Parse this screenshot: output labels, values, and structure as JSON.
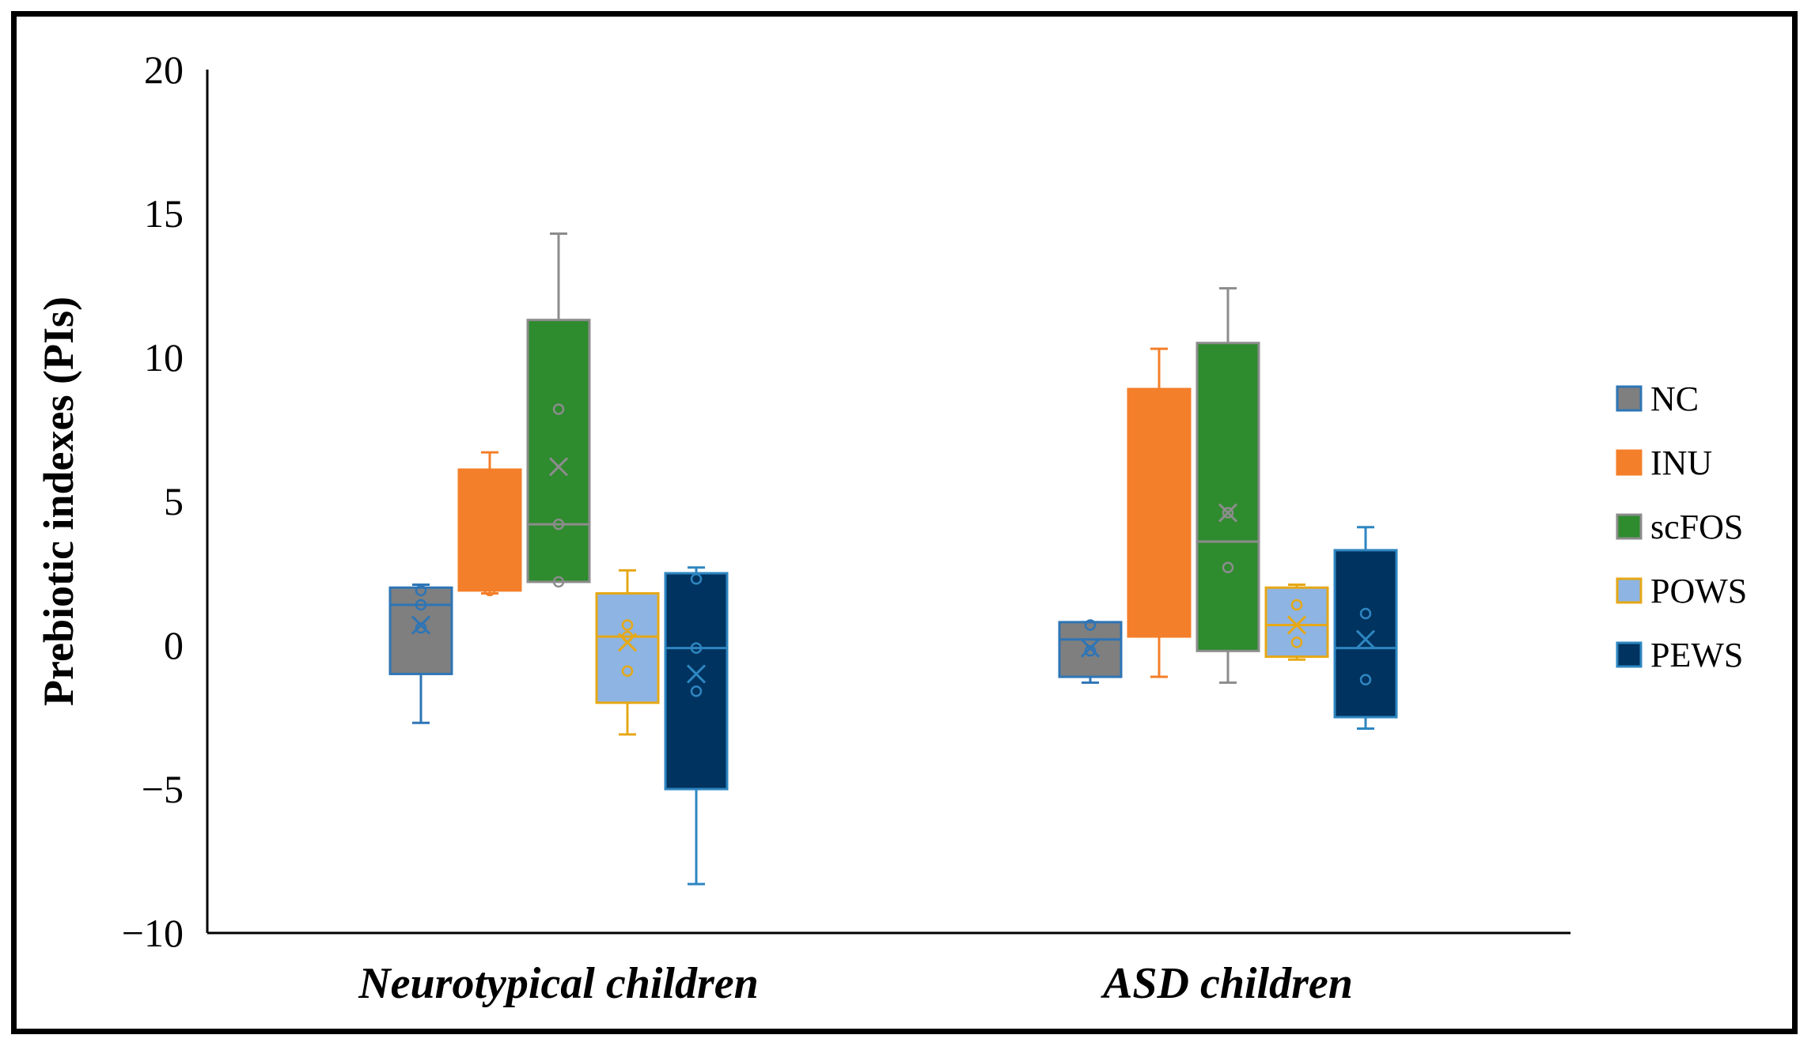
{
  "chart_data": {
    "type": "box",
    "title": "",
    "xlabel": "",
    "ylabel": "Prebiotic indexes (PIs)",
    "ylim": [
      -10,
      20
    ],
    "yticks": [
      -10,
      -5,
      0,
      5,
      10,
      15,
      20
    ],
    "ytick_labels": [
      "−10",
      "−5",
      "0",
      "5",
      "10",
      "15",
      "20"
    ],
    "grid": false,
    "legend_position": "right",
    "categories": [
      "Neurotypical children",
      "ASD children"
    ],
    "series": [
      {
        "name": "NC",
        "fill": "#7f7f7f",
        "stroke": "#2e75b6",
        "boxes": [
          {
            "min": -2.7,
            "q1": -1.0,
            "median": 1.4,
            "q3": 2.0,
            "max": 2.1,
            "mean": 0.7,
            "points": [
              1.9,
              1.4,
              0.6
            ]
          },
          {
            "min": -1.3,
            "q1": -1.1,
            "median": 0.2,
            "q3": 0.8,
            "max": 0.8,
            "mean": -0.1,
            "points": [
              0.7,
              -0.2
            ]
          }
        ]
      },
      {
        "name": "INU",
        "fill": "#f47f2a",
        "stroke": "#f47f2a",
        "boxes": [
          {
            "min": 1.8,
            "q1": 1.9,
            "median": 2.2,
            "q3": 6.1,
            "max": 6.7,
            "mean": 3.6,
            "points": [
              5.4,
              2.2,
              1.9
            ]
          },
          {
            "min": -1.1,
            "q1": 0.3,
            "median": 4.7,
            "q3": 8.9,
            "max": 10.3,
            "mean": 4.7,
            "points": [
              4.9,
              4.4
            ]
          }
        ]
      },
      {
        "name": "scFOS",
        "fill": "#2e8b2e",
        "stroke": "#8c8c8c",
        "boxes": [
          {
            "min": 2.2,
            "q1": 2.2,
            "median": 4.2,
            "q3": 11.3,
            "max": 14.3,
            "mean": 6.2,
            "points": [
              8.2,
              4.2,
              2.2
            ]
          },
          {
            "min": -1.3,
            "q1": -0.2,
            "median": 3.6,
            "q3": 10.5,
            "max": 12.4,
            "mean": 4.6,
            "points": [
              4.6,
              2.7
            ]
          }
        ]
      },
      {
        "name": "POWS",
        "fill": "#8db4e2",
        "stroke": "#e6a817",
        "boxes": [
          {
            "min": -3.1,
            "q1": -2.0,
            "median": 0.3,
            "q3": 1.8,
            "max": 2.6,
            "mean": 0.1,
            "points": [
              0.7,
              0.3,
              -0.9
            ]
          },
          {
            "min": -0.5,
            "q1": -0.4,
            "median": 0.7,
            "q3": 2.0,
            "max": 2.1,
            "mean": 0.7,
            "points": [
              1.4,
              0.1
            ]
          }
        ]
      },
      {
        "name": "PEWS",
        "fill": "#00335f",
        "stroke": "#2e86c1",
        "boxes": [
          {
            "min": -8.3,
            "q1": -5.0,
            "median": -0.1,
            "q3": 2.5,
            "max": 2.7,
            "mean": -1.0,
            "points": [
              2.3,
              -0.1,
              -1.6
            ]
          },
          {
            "min": -2.9,
            "q1": -2.5,
            "median": -0.1,
            "q3": 3.3,
            "max": 4.1,
            "mean": 0.2,
            "points": [
              1.1,
              -1.2
            ]
          }
        ]
      }
    ]
  }
}
